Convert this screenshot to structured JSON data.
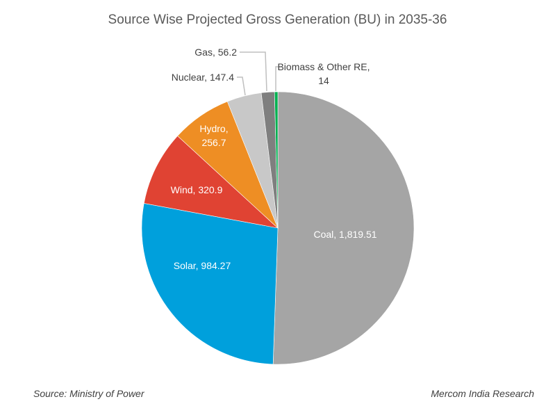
{
  "chart_data": {
    "type": "pie",
    "title": "Source Wise Projected Gross Generation (BU) in 2035-36",
    "start_angle": "12 o'clock",
    "direction": "clockwise",
    "slices": [
      {
        "name": "Coal",
        "value": 1819.51,
        "label": "Coal, 1,819.51",
        "color": "#A5A5A5",
        "label_position": "inside",
        "label_color": "#ffffff"
      },
      {
        "name": "Solar",
        "value": 984.27,
        "label": "Solar, 984.27",
        "color": "#00A0DC",
        "label_position": "inside",
        "label_color": "#ffffff"
      },
      {
        "name": "Wind",
        "value": 320.9,
        "label": "Wind, 320.9",
        "color": "#E04333",
        "label_position": "inside",
        "label_color": "#ffffff"
      },
      {
        "name": "Hydro",
        "value": 256.7,
        "label": "Hydro, 256.7",
        "color": "#EE8E24",
        "label_position": "inside",
        "label_color": "#ffffff"
      },
      {
        "name": "Nuclear",
        "value": 147.4,
        "label": "Nuclear, 147.4",
        "color": "#C8C8C8",
        "label_position": "outside",
        "label_color": "#404040"
      },
      {
        "name": "Gas",
        "value": 56.2,
        "label": "Gas, 56.2",
        "color": "#7F7F7F",
        "label_position": "outside",
        "label_color": "#404040"
      },
      {
        "name": "Biomass & Other RE",
        "value": 14,
        "label": "Biomass & Other RE, 14",
        "color": "#00B050",
        "label_position": "outside",
        "label_color": "#404040"
      }
    ],
    "legend": "none"
  },
  "footer": {
    "source": "Source: Ministry of Power",
    "credit": "Mercom India Research"
  }
}
